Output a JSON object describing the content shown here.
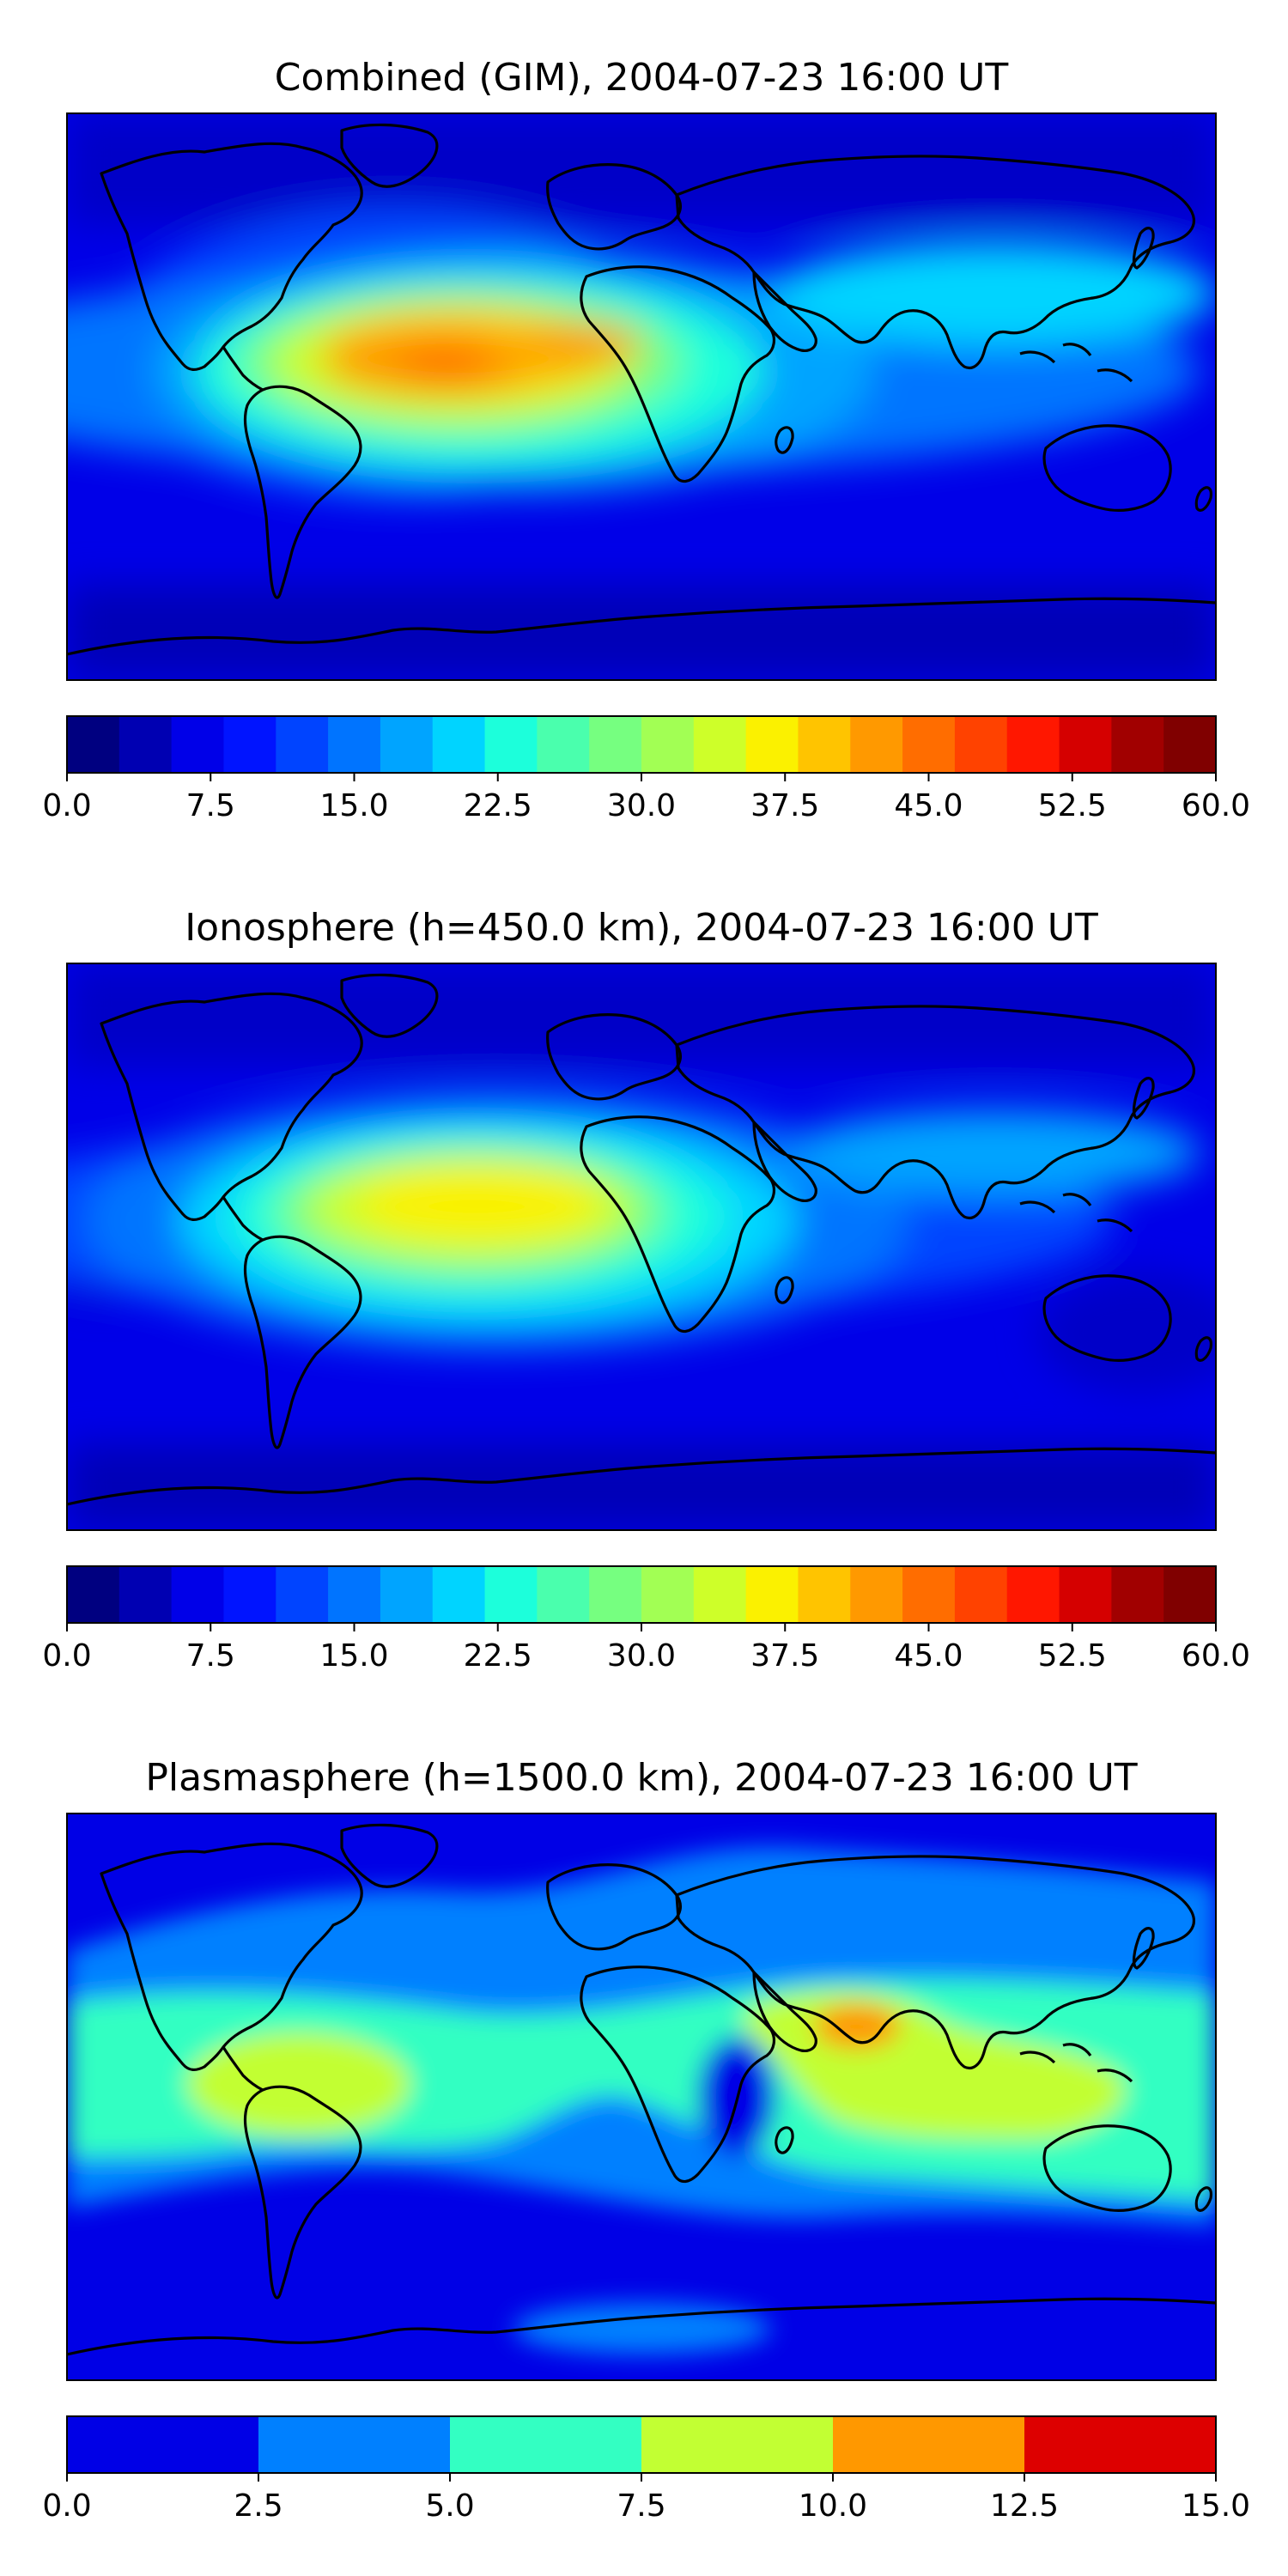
{
  "chart_data": [
    {
      "type": "heatmap",
      "title": "Combined (GIM), 2004-07-23 16:00 UT",
      "colorbar": {
        "range": [
          0,
          60
        ],
        "levels": [
          0,
          2.5,
          5,
          7.5,
          10,
          12.5,
          15,
          17.5,
          20,
          22.5,
          25,
          27.5,
          30,
          32.5,
          35,
          37.5,
          40,
          42.5,
          45,
          47.5,
          50,
          52.5,
          55,
          57.5,
          60
        ],
        "tick_labels": [
          "0.0",
          "7.5",
          "15.0",
          "22.5",
          "30.0",
          "37.5",
          "45.0",
          "52.5",
          "60.0"
        ],
        "colors": [
          "#000080",
          "#0000b2",
          "#0000e8",
          "#0014ff",
          "#0044ff",
          "#0074ff",
          "#00a4ff",
          "#00d4ff",
          "#1cffdb",
          "#4affad",
          "#76ff80",
          "#a2ff54",
          "#ceff29",
          "#fbf100",
          "#ffc400",
          "#ff9900",
          "#ff6d00",
          "#ff4200",
          "#ff1700",
          "#d50000",
          "#a10000",
          "#800000"
        ]
      },
      "features": [
        {
          "region": "tropical South America / Atlantic / Africa",
          "value": 45
        },
        {
          "region": "mid-latitudes",
          "value": 20
        },
        {
          "region": "polar regions",
          "value": 5
        }
      ]
    },
    {
      "type": "heatmap",
      "title": "Ionosphere  (h=450.0 km), 2004-07-23 16:00 UT",
      "colorbar": {
        "range": [
          0,
          60
        ],
        "levels": [
          0,
          2.5,
          5,
          7.5,
          10,
          12.5,
          15,
          17.5,
          20,
          22.5,
          25,
          27.5,
          30,
          32.5,
          35,
          37.5,
          40,
          42.5,
          45,
          47.5,
          50,
          52.5,
          55,
          57.5,
          60
        ],
        "tick_labels": [
          "0.0",
          "7.5",
          "15.0",
          "22.5",
          "30.0",
          "37.5",
          "45.0",
          "52.5",
          "60.0"
        ],
        "colors": [
          "#000080",
          "#0000b2",
          "#0000e8",
          "#0014ff",
          "#0044ff",
          "#0074ff",
          "#00a4ff",
          "#00d4ff",
          "#1cffdb",
          "#4affad",
          "#76ff80",
          "#a2ff54",
          "#ceff29",
          "#fbf100",
          "#ffc400",
          "#ff9900",
          "#ff6d00",
          "#ff4200",
          "#ff1700",
          "#d50000",
          "#a10000",
          "#800000"
        ]
      },
      "features": [
        {
          "region": "tropical South America / Atlantic / Africa",
          "value": 38
        },
        {
          "region": "mid-latitudes",
          "value": 17
        },
        {
          "region": "polar regions",
          "value": 3
        }
      ]
    },
    {
      "type": "heatmap",
      "title": "Plasmasphere (h=1500.0 km), 2004-07-23 16:00 UT",
      "colorbar": {
        "range": [
          0,
          15
        ],
        "levels": [
          0,
          2.5,
          5,
          7.5,
          10,
          12.5,
          15
        ],
        "tick_labels": [
          "0.0",
          "2.5",
          "5.0",
          "7.5",
          "10.0",
          "12.5",
          "15.0"
        ],
        "colors": [
          "#0000e6",
          "#0080ff",
          "#33ffc2",
          "#c2ff33",
          "#ff9800",
          "#dd0000"
        ]
      },
      "features": [
        {
          "region": "Arabian Sea / India",
          "value": 11
        },
        {
          "region": "Indonesia / equatorial band",
          "value": 8
        },
        {
          "region": "northern Pacific",
          "value": 3
        }
      ]
    }
  ]
}
